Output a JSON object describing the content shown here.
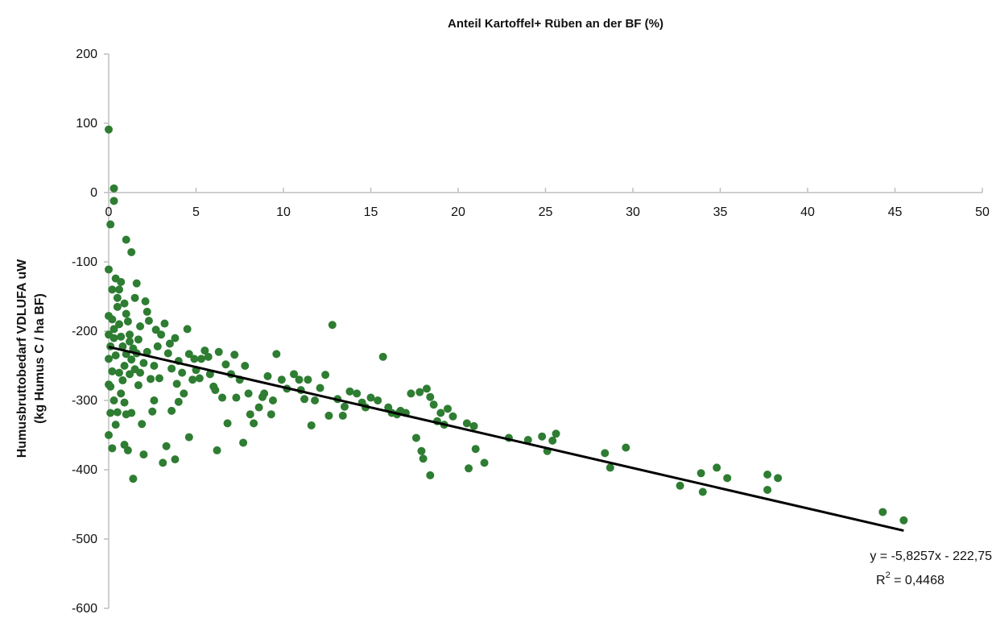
{
  "chart_data": {
    "type": "scatter",
    "title": "Anteil Kartoffel+ Rüben an der BF (%)",
    "ylabel_line1": "Humusbruttobedarf VDLUFA uW",
    "ylabel_line2": "(kg Humus C / ha BF)",
    "xlim": [
      0,
      50
    ],
    "ylim": [
      -600,
      200
    ],
    "x_ticks": [
      "0",
      "5",
      "10",
      "15",
      "20",
      "25",
      "30",
      "35",
      "40",
      "45",
      "50"
    ],
    "y_ticks": [
      "200",
      "100",
      "0",
      "-100",
      "-200",
      "-300",
      "-400",
      "-500",
      "-600"
    ],
    "x_axis_at_y": 0,
    "grid": false,
    "marker_color": "#2e7d32",
    "trendline": {
      "slope": -5.8257,
      "intercept": -222.75,
      "x_range": [
        0,
        45.5
      ],
      "color": "#000000",
      "equation": "y = -5,8257x - 222,75",
      "r2_label": "R",
      "r2_exp": "2",
      "r2_value": " = 0,4468"
    },
    "points": [
      [
        0.0,
        91
      ],
      [
        0.3,
        6
      ],
      [
        0.3,
        -12
      ],
      [
        0.1,
        -46
      ],
      [
        1.0,
        -68
      ],
      [
        1.3,
        -86
      ],
      [
        0.0,
        -111
      ],
      [
        0.0,
        -178
      ],
      [
        0.2,
        -183
      ],
      [
        0.3,
        -197
      ],
      [
        0.3,
        -210
      ],
      [
        0.5,
        -165
      ],
      [
        0.5,
        -152
      ],
      [
        0.6,
        -140
      ],
      [
        0.7,
        -129
      ],
      [
        0.9,
        -160
      ],
      [
        1.0,
        -175
      ],
      [
        1.2,
        -205
      ],
      [
        1.6,
        -131
      ],
      [
        1.8,
        -193
      ],
      [
        2.1,
        -157
      ],
      [
        2.3,
        -185
      ],
      [
        0.0,
        -205
      ],
      [
        0.1,
        -222
      ],
      [
        0.0,
        -240
      ],
      [
        0.2,
        -258
      ],
      [
        0.0,
        -277
      ],
      [
        0.1,
        -280
      ],
      [
        0.3,
        -300
      ],
      [
        0.1,
        -318
      ],
      [
        0.0,
        -350
      ],
      [
        0.2,
        -369
      ],
      [
        0.4,
        -335
      ],
      [
        0.5,
        -317
      ],
      [
        0.7,
        -290
      ],
      [
        0.8,
        -271
      ],
      [
        0.9,
        -250
      ],
      [
        1.0,
        -233
      ],
      [
        1.2,
        -215
      ],
      [
        1.3,
        -241
      ],
      [
        1.5,
        -255
      ],
      [
        1.6,
        -232
      ],
      [
        1.8,
        -260
      ],
      [
        2.0,
        -246
      ],
      [
        2.2,
        -230
      ],
      [
        2.4,
        -269
      ],
      [
        2.6,
        -250
      ],
      [
        2.8,
        -222
      ],
      [
        3.0,
        -205
      ],
      [
        3.2,
        -189
      ],
      [
        3.4,
        -232
      ],
      [
        3.6,
        -254
      ],
      [
        3.8,
        -210
      ],
      [
        4.0,
        -243
      ],
      [
        4.2,
        -260
      ],
      [
        4.5,
        -197
      ],
      [
        4.6,
        -233
      ],
      [
        0.9,
        -364
      ],
      [
        1.1,
        -372
      ],
      [
        1.4,
        -413
      ],
      [
        1.9,
        -334
      ],
      [
        2.0,
        -378
      ],
      [
        2.5,
        -316
      ],
      [
        3.1,
        -390
      ],
      [
        3.3,
        -366
      ],
      [
        3.8,
        -385
      ],
      [
        4.6,
        -353
      ],
      [
        3.6,
        -315
      ],
      [
        4.0,
        -302
      ],
      [
        4.3,
        -290
      ],
      [
        4.8,
        -270
      ],
      [
        5.0,
        -256
      ],
      [
        5.3,
        -240
      ],
      [
        5.5,
        -228
      ],
      [
        5.8,
        -262
      ],
      [
        6.0,
        -280
      ],
      [
        6.3,
        -230
      ],
      [
        6.5,
        -296
      ],
      [
        6.8,
        -333
      ],
      [
        7.0,
        -262
      ],
      [
        7.2,
        -234
      ],
      [
        7.5,
        -270
      ],
      [
        7.8,
        -250
      ],
      [
        8.0,
        -290
      ],
      [
        8.3,
        -333
      ],
      [
        8.6,
        -310
      ],
      [
        8.8,
        -295
      ],
      [
        9.1,
        -265
      ],
      [
        9.4,
        -300
      ],
      [
        9.6,
        -233
      ],
      [
        9.9,
        -270
      ],
      [
        10.2,
        -283
      ],
      [
        10.6,
        -262
      ],
      [
        11.0,
        -285
      ],
      [
        11.4,
        -270
      ],
      [
        11.8,
        -300
      ],
      [
        12.1,
        -282
      ],
      [
        12.4,
        -263
      ],
      [
        12.8,
        -191
      ],
      [
        13.1,
        -298
      ],
      [
        13.5,
        -309
      ],
      [
        13.8,
        -287
      ],
      [
        14.2,
        -290
      ],
      [
        14.7,
        -310
      ],
      [
        15.0,
        -296
      ],
      [
        15.4,
        -300
      ],
      [
        15.7,
        -237
      ],
      [
        16.0,
        -310
      ],
      [
        16.5,
        -320
      ],
      [
        17.0,
        -318
      ],
      [
        17.3,
        -290
      ],
      [
        17.6,
        -354
      ],
      [
        17.9,
        -373
      ],
      [
        18.0,
        -384
      ],
      [
        18.2,
        -283
      ],
      [
        18.4,
        -295
      ],
      [
        18.6,
        -306
      ],
      [
        18.8,
        -330
      ],
      [
        19.0,
        -318
      ],
      [
        18.4,
        -408
      ],
      [
        19.4,
        -312
      ],
      [
        20.5,
        -333
      ],
      [
        20.6,
        -398
      ],
      [
        20.9,
        -337
      ],
      [
        21.0,
        -370
      ],
      [
        21.5,
        -390
      ],
      [
        22.9,
        -354
      ],
      [
        24.0,
        -357
      ],
      [
        24.8,
        -352
      ],
      [
        25.1,
        -373
      ],
      [
        25.4,
        -358
      ],
      [
        25.6,
        -348
      ],
      [
        28.4,
        -376
      ],
      [
        28.7,
        -397
      ],
      [
        29.6,
        -368
      ],
      [
        32.7,
        -423
      ],
      [
        33.9,
        -405
      ],
      [
        34.0,
        -432
      ],
      [
        34.8,
        -397
      ],
      [
        35.4,
        -412
      ],
      [
        37.7,
        -407
      ],
      [
        37.7,
        -429
      ],
      [
        38.3,
        -412
      ],
      [
        44.3,
        -461
      ],
      [
        45.5,
        -473
      ],
      [
        0.6,
        -190
      ],
      [
        0.7,
        -208
      ],
      [
        0.8,
        -222
      ],
      [
        1.1,
        -186
      ],
      [
        1.4,
        -225
      ],
      [
        1.7,
        -212
      ],
      [
        2.7,
        -198
      ],
      [
        3.5,
        -218
      ],
      [
        0.4,
        -235
      ],
      [
        0.6,
        -260
      ],
      [
        1.2,
        -262
      ],
      [
        1.7,
        -278
      ],
      [
        2.9,
        -268
      ],
      [
        3.9,
        -276
      ],
      [
        5.2,
        -268
      ],
      [
        6.1,
        -285
      ],
      [
        7.3,
        -296
      ],
      [
        8.1,
        -320
      ],
      [
        9.3,
        -320
      ],
      [
        10.9,
        -270
      ],
      [
        11.6,
        -336
      ],
      [
        12.6,
        -322
      ],
      [
        14.5,
        -303
      ],
      [
        16.7,
        -315
      ],
      [
        17.8,
        -288
      ],
      [
        19.2,
        -335
      ],
      [
        0.2,
        -140
      ],
      [
        0.4,
        -124
      ],
      [
        1.5,
        -152
      ],
      [
        2.2,
        -172
      ],
      [
        0.9,
        -303
      ],
      [
        1.3,
        -318
      ],
      [
        2.6,
        -300
      ],
      [
        4.9,
        -240
      ],
      [
        5.7,
        -237
      ],
      [
        6.7,
        -248
      ],
      [
        8.9,
        -290
      ],
      [
        11.2,
        -298
      ],
      [
        13.4,
        -322
      ],
      [
        16.2,
        -318
      ],
      [
        19.7,
        -323
      ],
      [
        6.2,
        -372
      ],
      [
        7.7,
        -361
      ],
      [
        1.0,
        -320
      ]
    ]
  }
}
